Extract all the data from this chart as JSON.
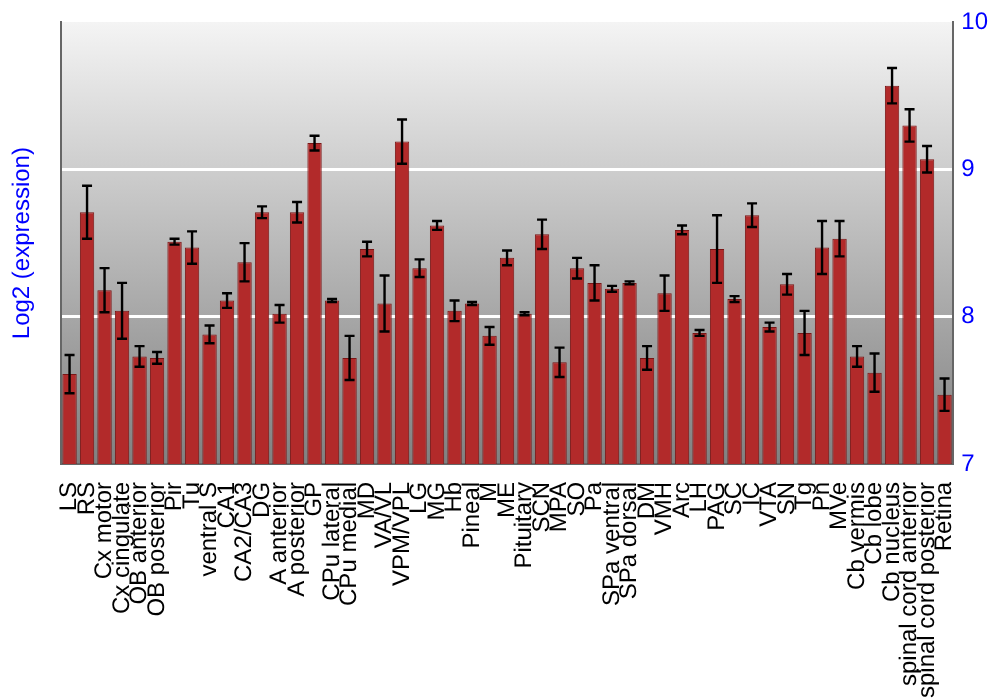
{
  "chart_data": {
    "type": "bar",
    "ylabel": "Log2 (expression)",
    "categories": [
      "LS",
      "RS",
      "Cx motor",
      "Cx cingulate",
      "OB anterior",
      "OB posterior",
      "Pir",
      "Tu",
      "ventral S",
      "CA1",
      "CA2/CA3",
      "DG",
      "A anterior",
      "A posterior",
      "GP",
      "CPu lateral",
      "CPu medial",
      "MD",
      "VA/VL",
      "VPM/VPL",
      "LG",
      "MG",
      "Hb",
      "Pineal",
      "M",
      "ME",
      "Pituitary",
      "SCN",
      "MPA",
      "SO",
      "Pa",
      "SPa ventral",
      "SPa dorsal",
      "DM",
      "VMH",
      "Arc",
      "LH",
      "PAG",
      "SC",
      "IC",
      "VTA",
      "SN",
      "Tg",
      "Pn",
      "MVe",
      "Cb vermis",
      "Cb lobe",
      "Cb nucleus",
      "spinal cord anterior",
      "spinal cord posterior",
      "Retina"
    ],
    "values": [
      7.61,
      8.71,
      8.18,
      8.04,
      7.73,
      7.72,
      8.51,
      8.47,
      7.88,
      8.11,
      8.37,
      8.71,
      8.02,
      8.71,
      9.18,
      8.11,
      7.72,
      8.46,
      8.09,
      9.19,
      8.33,
      8.62,
      8.04,
      8.09,
      7.87,
      8.4,
      8.02,
      8.56,
      7.69,
      8.33,
      8.23,
      8.19,
      8.23,
      7.72,
      8.16,
      8.59,
      7.89,
      8.46,
      8.12,
      8.69,
      7.93,
      8.22,
      7.89,
      8.47,
      8.53,
      7.73,
      7.62,
      9.57,
      9.3,
      9.07,
      7.47
    ],
    "errors": [
      0.13,
      0.18,
      0.15,
      0.19,
      0.07,
      0.04,
      0.02,
      0.11,
      0.06,
      0.05,
      0.13,
      0.04,
      0.06,
      0.07,
      0.05,
      0.01,
      0.15,
      0.05,
      0.19,
      0.15,
      0.06,
      0.03,
      0.07,
      0.01,
      0.06,
      0.05,
      0.01,
      0.1,
      0.1,
      0.07,
      0.12,
      0.02,
      0.01,
      0.08,
      0.12,
      0.03,
      0.02,
      0.23,
      0.02,
      0.08,
      0.03,
      0.07,
      0.15,
      0.18,
      0.12,
      0.07,
      0.13,
      0.12,
      0.11,
      0.09,
      0.11
    ],
    "color": "#b22a2a",
    "ylim": [
      7,
      10
    ],
    "yticks": [
      7,
      8,
      9,
      10
    ],
    "grid": "y"
  }
}
